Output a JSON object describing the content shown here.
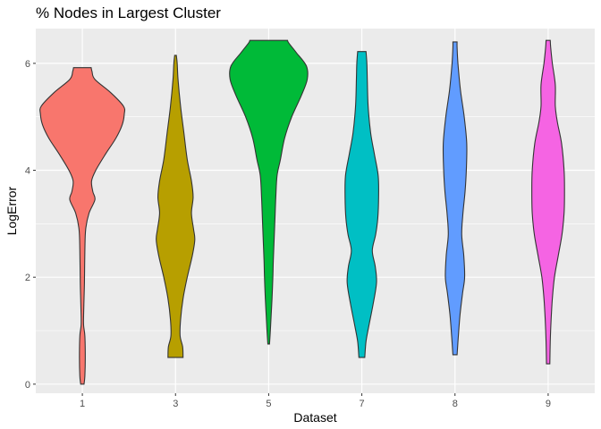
{
  "chart_data": {
    "type": "violin",
    "title": "% Nodes in Largest Cluster",
    "xlabel": "Dataset",
    "ylabel": "LogError",
    "categories": [
      "1",
      "3",
      "5",
      "7",
      "8",
      "9"
    ],
    "ylim": [
      -0.17,
      6.65
    ],
    "y_ticks": [
      0,
      2,
      4,
      6
    ],
    "grid": true,
    "legend": "none",
    "panel_background": "#ebebeb",
    "grid_color": "#ffffff",
    "outline_color": "#333333",
    "colors": [
      "#f8766d",
      "#b79f00",
      "#00ba38",
      "#00bfc4",
      "#619cff",
      "#f564e3"
    ],
    "series": [
      {
        "category": "1",
        "min": 0.0,
        "max": 5.92,
        "profile": [
          [
            0.0,
            0.04
          ],
          [
            0.15,
            0.06
          ],
          [
            0.5,
            0.07
          ],
          [
            0.9,
            0.06
          ],
          [
            1.1,
            0.03
          ],
          [
            1.3,
            0.03
          ],
          [
            1.6,
            0.04
          ],
          [
            1.9,
            0.05
          ],
          [
            2.5,
            0.06
          ],
          [
            2.9,
            0.08
          ],
          [
            3.2,
            0.16
          ],
          [
            3.45,
            0.3
          ],
          [
            3.6,
            0.25
          ],
          [
            3.8,
            0.22
          ],
          [
            4.0,
            0.32
          ],
          [
            4.3,
            0.55
          ],
          [
            4.6,
            0.8
          ],
          [
            4.85,
            0.95
          ],
          [
            5.05,
            1.0
          ],
          [
            5.2,
            0.98
          ],
          [
            5.45,
            0.68
          ],
          [
            5.7,
            0.3
          ],
          [
            5.85,
            0.23
          ],
          [
            5.92,
            0.21
          ]
        ]
      },
      {
        "category": "3",
        "min": 0.5,
        "max": 6.15,
        "profile": [
          [
            0.5,
            0.18
          ],
          [
            0.7,
            0.17
          ],
          [
            0.9,
            0.11
          ],
          [
            1.2,
            0.12
          ],
          [
            1.6,
            0.18
          ],
          [
            2.0,
            0.28
          ],
          [
            2.4,
            0.4
          ],
          [
            2.7,
            0.46
          ],
          [
            2.9,
            0.43
          ],
          [
            3.2,
            0.38
          ],
          [
            3.5,
            0.42
          ],
          [
            3.8,
            0.38
          ],
          [
            4.2,
            0.28
          ],
          [
            4.7,
            0.2
          ],
          [
            5.2,
            0.12
          ],
          [
            5.7,
            0.06
          ],
          [
            6.0,
            0.04
          ],
          [
            6.15,
            0.02
          ]
        ]
      },
      {
        "category": "5",
        "min": 0.75,
        "max": 6.43,
        "profile": [
          [
            0.75,
            0.02
          ],
          [
            1.0,
            0.04
          ],
          [
            1.3,
            0.06
          ],
          [
            1.6,
            0.08
          ],
          [
            2.0,
            0.1
          ],
          [
            2.3,
            0.11
          ],
          [
            2.7,
            0.13
          ],
          [
            3.1,
            0.15
          ],
          [
            3.5,
            0.17
          ],
          [
            3.9,
            0.2
          ],
          [
            4.2,
            0.28
          ],
          [
            4.6,
            0.38
          ],
          [
            5.0,
            0.55
          ],
          [
            5.4,
            0.78
          ],
          [
            5.7,
            0.92
          ],
          [
            5.95,
            0.9
          ],
          [
            6.2,
            0.66
          ],
          [
            6.38,
            0.48
          ],
          [
            6.43,
            0.45
          ]
        ]
      },
      {
        "category": "7",
        "min": 0.5,
        "max": 6.22,
        "profile": [
          [
            0.5,
            0.07
          ],
          [
            0.8,
            0.1
          ],
          [
            1.1,
            0.17
          ],
          [
            1.5,
            0.27
          ],
          [
            1.9,
            0.35
          ],
          [
            2.2,
            0.32
          ],
          [
            2.5,
            0.25
          ],
          [
            2.8,
            0.33
          ],
          [
            3.1,
            0.38
          ],
          [
            3.5,
            0.4
          ],
          [
            3.9,
            0.39
          ],
          [
            4.3,
            0.3
          ],
          [
            4.7,
            0.21
          ],
          [
            5.2,
            0.15
          ],
          [
            5.7,
            0.13
          ],
          [
            6.0,
            0.12
          ],
          [
            6.22,
            0.1
          ]
        ]
      },
      {
        "category": "8",
        "min": 0.55,
        "max": 6.4,
        "profile": [
          [
            0.55,
            0.05
          ],
          [
            0.9,
            0.08
          ],
          [
            1.3,
            0.12
          ],
          [
            1.7,
            0.18
          ],
          [
            2.0,
            0.23
          ],
          [
            2.4,
            0.21
          ],
          [
            2.8,
            0.16
          ],
          [
            3.2,
            0.19
          ],
          [
            3.6,
            0.24
          ],
          [
            4.0,
            0.27
          ],
          [
            4.5,
            0.28
          ],
          [
            5.0,
            0.22
          ],
          [
            5.5,
            0.13
          ],
          [
            6.0,
            0.07
          ],
          [
            6.3,
            0.05
          ],
          [
            6.4,
            0.05
          ]
        ]
      },
      {
        "category": "9",
        "min": 0.38,
        "max": 6.43,
        "profile": [
          [
            0.38,
            0.04
          ],
          [
            0.8,
            0.05
          ],
          [
            1.2,
            0.07
          ],
          [
            1.6,
            0.1
          ],
          [
            2.0,
            0.15
          ],
          [
            2.4,
            0.24
          ],
          [
            2.8,
            0.33
          ],
          [
            3.2,
            0.38
          ],
          [
            3.6,
            0.39
          ],
          [
            4.0,
            0.38
          ],
          [
            4.5,
            0.32
          ],
          [
            4.9,
            0.22
          ],
          [
            5.2,
            0.17
          ],
          [
            5.6,
            0.17
          ],
          [
            6.0,
            0.1
          ],
          [
            6.3,
            0.06
          ],
          [
            6.43,
            0.05
          ]
        ]
      }
    ]
  }
}
